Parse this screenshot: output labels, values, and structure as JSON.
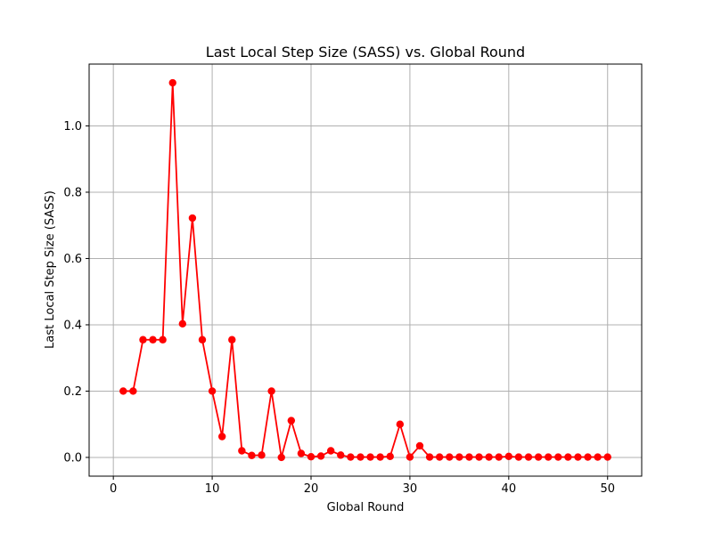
{
  "chart_data": {
    "type": "line",
    "title": "Last Local Step Size (SASS) vs. Global Round",
    "xlabel": "Global Round",
    "ylabel": "Last Local Step Size (SASS)",
    "xlim": [
      -2.45,
      53.45
    ],
    "ylim": [
      -0.0565,
      1.1865
    ],
    "xticks": [
      0,
      10,
      20,
      30,
      40,
      50
    ],
    "yticks": [
      0.0,
      0.2,
      0.4,
      0.6,
      0.8,
      1.0
    ],
    "xtick_labels": [
      "0",
      "10",
      "20",
      "30",
      "40",
      "50"
    ],
    "ytick_labels": [
      "0.0",
      "0.2",
      "0.4",
      "0.6",
      "0.8",
      "1.0"
    ],
    "grid": true,
    "series": [
      {
        "color": "#ff0000",
        "marker": "circle",
        "x": [
          1,
          2,
          3,
          4,
          5,
          6,
          7,
          8,
          9,
          10,
          11,
          12,
          13,
          14,
          15,
          16,
          17,
          18,
          19,
          20,
          21,
          22,
          23,
          24,
          25,
          26,
          27,
          28,
          29,
          30,
          31,
          32,
          33,
          34,
          35,
          36,
          37,
          38,
          39,
          40,
          41,
          42,
          43,
          44,
          45,
          46,
          47,
          48,
          49,
          50
        ],
        "y": [
          0.2,
          0.2,
          0.355,
          0.355,
          0.355,
          1.13,
          0.403,
          0.722,
          0.355,
          0.2,
          0.063,
          0.355,
          0.02,
          0.006,
          0.007,
          0.2,
          0.0,
          0.111,
          0.012,
          0.002,
          0.004,
          0.02,
          0.007,
          0.001,
          0.001,
          0.001,
          0.001,
          0.003,
          0.1,
          0.001,
          0.035,
          0.001,
          0.001,
          0.001,
          0.001,
          0.001,
          0.001,
          0.001,
          0.001,
          0.003,
          0.001,
          0.001,
          0.001,
          0.001,
          0.001,
          0.001,
          0.001,
          0.001,
          0.001,
          0.001
        ]
      }
    ]
  }
}
